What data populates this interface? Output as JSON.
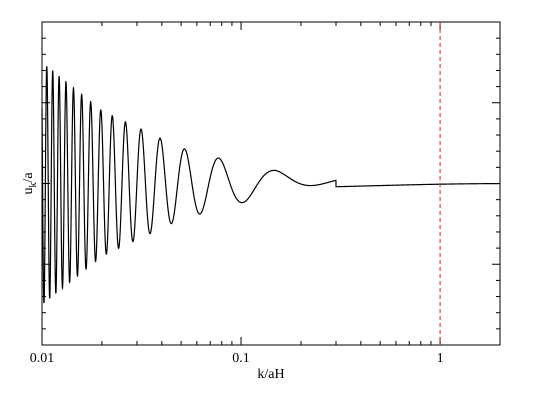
{
  "chart_data": {
    "type": "line",
    "title": "",
    "xlabel": "k/aH",
    "ylabel_main": "u",
    "ylabel_sub": "k",
    "ylabel_tail": "/a",
    "x_scale": "log",
    "xlim": [
      0.01,
      2
    ],
    "ylim": [
      -1.0,
      1.0
    ],
    "x_ticks": [
      {
        "value": 0.01,
        "label": "0.01"
      },
      {
        "value": 0.1,
        "label": "0.1"
      },
      {
        "value": 1,
        "label": "1"
      }
    ],
    "y_ticks_labeled": false,
    "grid": false,
    "legend": "none",
    "series": [
      {
        "color": "#000000",
        "description_points": [
          {
            "x": 0.01,
            "y": 0.75
          },
          {
            "x": 0.02,
            "y": 0.45
          },
          {
            "x": 0.05,
            "y": 0.22
          },
          {
            "x": 0.1,
            "y": 0.12
          },
          {
            "x": 0.15,
            "y": 0.08
          },
          {
            "x": 0.3,
            "y": -0.02
          },
          {
            "x": 1.0,
            "y": 0.0
          },
          {
            "x": 2.0,
            "y": 0.0
          }
        ]
      }
    ],
    "reference_lines": [
      {
        "orientation": "vertical",
        "x": 1,
        "style": "dashed",
        "color": "#dd2222"
      }
    ]
  }
}
